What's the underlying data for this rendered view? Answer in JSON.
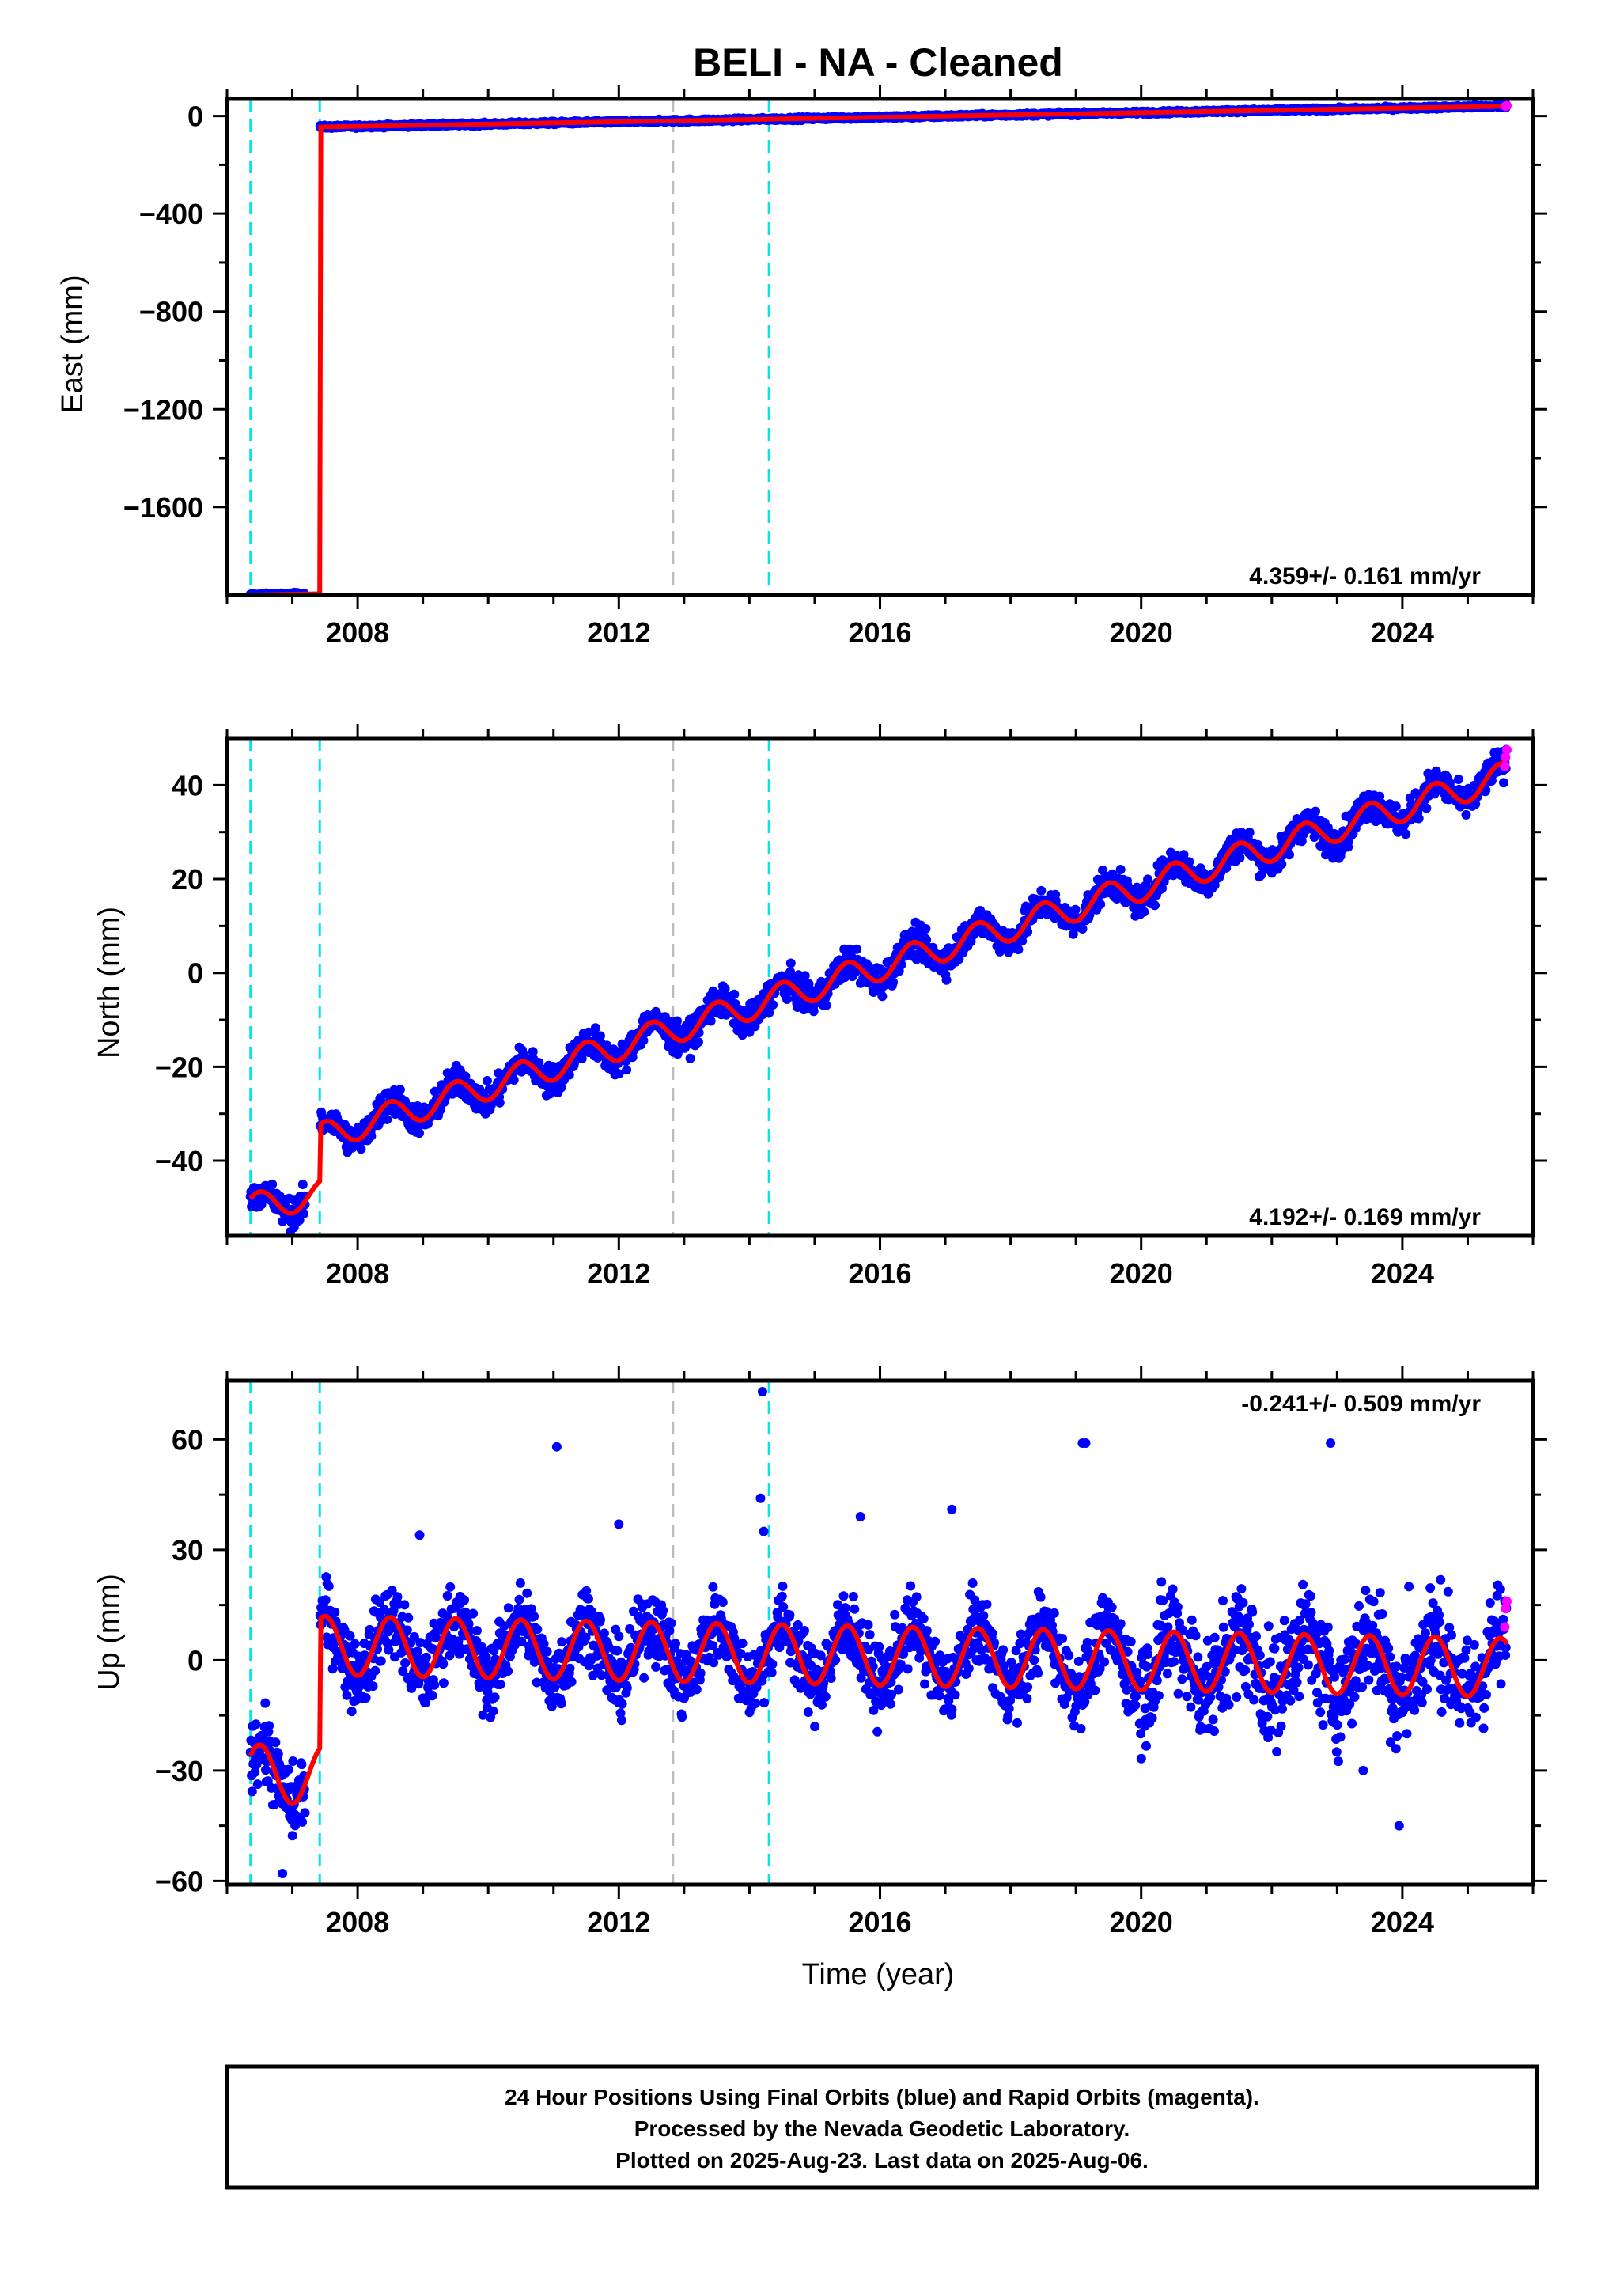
{
  "title": "BELI  - NA - Cleaned",
  "colors": {
    "final": "#0000ff",
    "rapid": "#ff00ff",
    "model": "#ff0000",
    "break_cyan": "#00e5ee",
    "break_gray": "#bbbbbb"
  },
  "chart_data": [
    {
      "type": "scatter",
      "id": "east",
      "ylabel": "East (mm)",
      "xlabel": "",
      "xlim": [
        2006.0,
        2026.0
      ],
      "ylim": [
        -1960,
        70
      ],
      "xticks": [
        2008,
        2012,
        2016,
        2020,
        2024
      ],
      "yticks": [
        0,
        -400,
        -800,
        -1200,
        -1600
      ],
      "ytick_labels": [
        "0",
        "−400",
        "−800",
        "−1200",
        "−1600"
      ],
      "rate": "4.359+/- 0.161 mm/yr",
      "rate_position": "bottom-right",
      "breaks": [
        {
          "x": 2006.36,
          "color": "cyan"
        },
        {
          "x": 2007.42,
          "color": "cyan"
        },
        {
          "x": 2012.83,
          "color": "gray"
        },
        {
          "x": 2014.3,
          "color": "cyan"
        }
      ],
      "model_segments": [
        {
          "x": [
            2006.36,
            2007.42
          ],
          "y": [
            -1960,
            -1955
          ]
        },
        {
          "x": [
            2007.42,
            2025.6
          ],
          "y": [
            -45,
            40
          ]
        }
      ],
      "seasonal_amplitude": 0,
      "noise": 3,
      "rapid_points": [
        {
          "x": 2025.58,
          "y": 40
        },
        {
          "x": 2025.6,
          "y": 42
        }
      ]
    },
    {
      "type": "scatter",
      "id": "north",
      "ylabel": "North (mm)",
      "xlabel": "",
      "xlim": [
        2006.0,
        2026.0
      ],
      "ylim": [
        -56,
        50
      ],
      "xticks": [
        2008,
        2012,
        2016,
        2020,
        2024
      ],
      "yticks": [
        40,
        20,
        0,
        -20,
        -40
      ],
      "ytick_labels": [
        "40",
        "20",
        "0",
        "−20",
        "−40"
      ],
      "rate": "4.192+/- 0.169 mm/yr",
      "rate_position": "bottom-right",
      "breaks": [
        {
          "x": 2006.36,
          "color": "cyan"
        },
        {
          "x": 2007.42,
          "color": "cyan"
        },
        {
          "x": 2012.83,
          "color": "gray"
        },
        {
          "x": 2014.3,
          "color": "cyan"
        }
      ],
      "model_segments": [
        {
          "x": [
            2006.36,
            2007.42
          ],
          "y": [
            -50,
            -47
          ]
        },
        {
          "x": [
            2007.42,
            2025.6
          ],
          "y": [
            -35,
            42
          ]
        }
      ],
      "seasonal_amplitude": 3,
      "noise": 1.6,
      "rapid_points": [
        {
          "x": 2025.57,
          "y": 44
        },
        {
          "x": 2025.58,
          "y": 46
        },
        {
          "x": 2025.6,
          "y": 47.5
        }
      ]
    },
    {
      "type": "scatter",
      "id": "up",
      "ylabel": "Up (mm)",
      "xlabel": "Time (year)",
      "xlim": [
        2006.0,
        2026.0
      ],
      "ylim": [
        -61,
        76
      ],
      "xticks": [
        2008,
        2012,
        2016,
        2020,
        2024
      ],
      "yticks": [
        60,
        30,
        0,
        -30,
        -60
      ],
      "ytick_labels": [
        "60",
        "30",
        "0",
        "−30",
        "−60"
      ],
      "rate": "-0.241+/- 0.509 mm/yr",
      "rate_position": "top-right",
      "breaks": [
        {
          "x": 2006.36,
          "color": "cyan"
        },
        {
          "x": 2007.42,
          "color": "cyan"
        },
        {
          "x": 2012.83,
          "color": "gray"
        },
        {
          "x": 2014.3,
          "color": "cyan"
        }
      ],
      "model_segments": [
        {
          "x": [
            2006.36,
            2007.42
          ],
          "y": [
            -31,
            -31
          ]
        },
        {
          "x": [
            2007.42,
            2025.6
          ],
          "y": [
            4,
            -2
          ]
        }
      ],
      "seasonal_amplitude": 8,
      "noise": 5,
      "outliers": [
        {
          "x": 2011.05,
          "y": 58
        },
        {
          "x": 2014.2,
          "y": 73
        },
        {
          "x": 2014.17,
          "y": 44
        },
        {
          "x": 2014.22,
          "y": 35
        },
        {
          "x": 2019.1,
          "y": 59
        },
        {
          "x": 2019.15,
          "y": 59
        },
        {
          "x": 2022.9,
          "y": 59
        },
        {
          "x": 2023.95,
          "y": -45
        },
        {
          "x": 2006.85,
          "y": -58
        },
        {
          "x": 2012.0,
          "y": 37
        },
        {
          "x": 2008.95,
          "y": 34
        },
        {
          "x": 2017.1,
          "y": 41
        },
        {
          "x": 2015.7,
          "y": 39
        },
        {
          "x": 2024.1,
          "y": 20
        },
        {
          "x": 2023.4,
          "y": -30
        }
      ],
      "rapid_points": [
        {
          "x": 2025.57,
          "y": 9
        },
        {
          "x": 2025.58,
          "y": 14
        },
        {
          "x": 2025.6,
          "y": 16
        }
      ]
    }
  ],
  "footer": {
    "line1": "24 Hour Positions Using Final Orbits (blue) and Rapid Orbits (magenta).",
    "line2": "Processed by the Nevada Geodetic Laboratory.",
    "line3": "Plotted on 2025-Aug-23. Last data on 2025-Aug-06."
  }
}
